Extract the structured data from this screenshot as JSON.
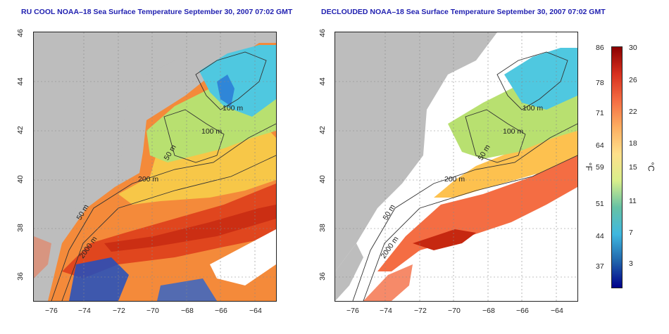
{
  "panels": [
    {
      "title": "RU COOL NOAA–18 Sea Surface Temperature September 30, 2007 07:02 GMT"
    },
    {
      "title": "DECLOUDED NOAA–18 Sea Surface Temperature September 30, 2007 07:02 GMT"
    }
  ],
  "axes": {
    "lon_ticks": [
      "−76",
      "−74",
      "−72",
      "−70",
      "−68",
      "−66",
      "−64"
    ],
    "lat_ticks": [
      "36",
      "38",
      "40",
      "42",
      "44",
      "46"
    ]
  },
  "contour_labels": [
    "100 m",
    "100 m",
    "50 m",
    "200 m",
    "50 m",
    "2000 m"
  ],
  "colorbar": {
    "fahrenheit_unit": "°F",
    "celsius_unit": "°C",
    "fahrenheit_ticks": [
      "86",
      "78",
      "71",
      "64",
      "59",
      "51",
      "44",
      "37"
    ],
    "celsius_ticks": [
      "30",
      "26",
      "22",
      "18",
      "15",
      "11",
      "7",
      "3"
    ],
    "colors": [
      "#8b0000",
      "#d7301f",
      "#f46d43",
      "#fdae61",
      "#fee08b",
      "#d9ef8b",
      "#66c2a5",
      "#3fb8e0",
      "#2166ac",
      "#00008b"
    ]
  }
}
